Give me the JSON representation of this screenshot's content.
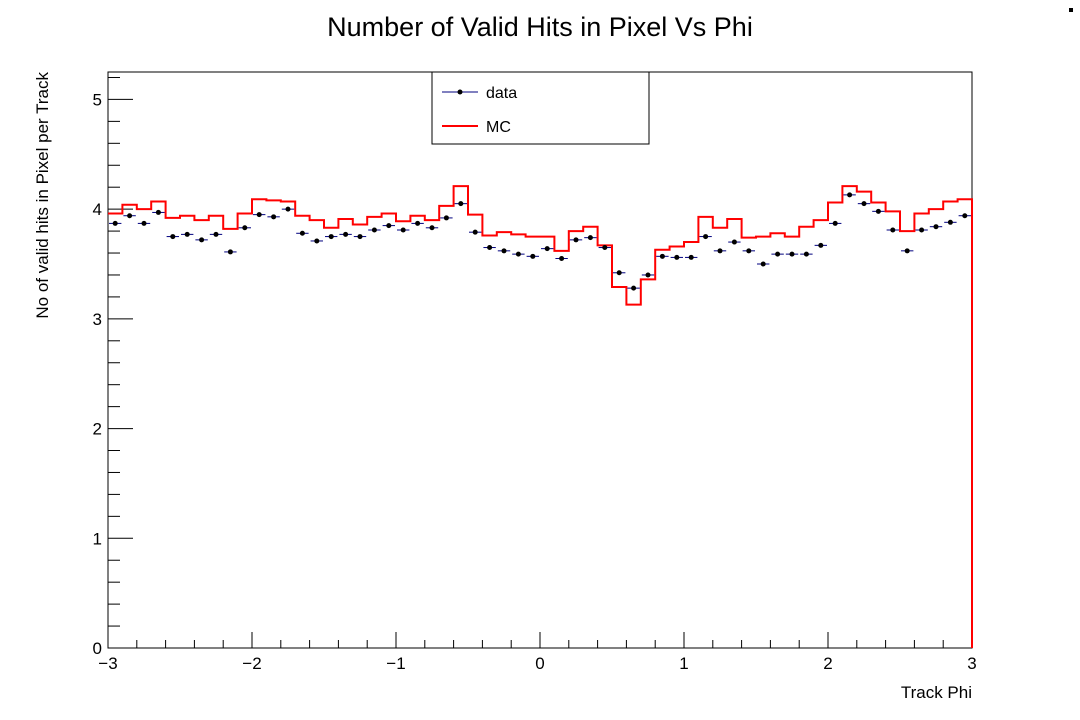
{
  "chart_data": {
    "type": "line",
    "title": "Number of Valid Hits in Pixel Vs Phi",
    "xlabel": "Track Phi",
    "ylabel": "No of valid hits in Pixel per Track",
    "xlim": [
      -3,
      3
    ],
    "ylim": [
      0,
      5.25
    ],
    "x_ticks": [
      -3,
      -2,
      -1,
      0,
      1,
      2,
      3
    ],
    "x_tick_labels": [
      "−3",
      "−2",
      "−1",
      "0",
      "1",
      "2",
      "3"
    ],
    "y_ticks": [
      0,
      1,
      2,
      3,
      4,
      5
    ],
    "y_tick_labels": [
      "0",
      "1",
      "2",
      "3",
      "4",
      "5"
    ],
    "grid": false,
    "legend_position": "top-center",
    "bins": 60,
    "series": [
      {
        "name": "data",
        "style": "markers-with-xerror",
        "color": "#000000",
        "line_color": "#00007f",
        "values": [
          3.87,
          3.94,
          3.87,
          3.97,
          3.75,
          3.77,
          3.72,
          3.77,
          3.61,
          3.83,
          3.95,
          3.93,
          4.0,
          3.78,
          3.71,
          3.75,
          3.77,
          3.75,
          3.81,
          3.85,
          3.81,
          3.87,
          3.83,
          3.92,
          4.05,
          3.79,
          3.65,
          3.62,
          3.59,
          3.57,
          3.64,
          3.55,
          3.72,
          3.74,
          3.65,
          3.42,
          3.28,
          3.4,
          3.57,
          3.56,
          3.56,
          3.75,
          3.62,
          3.7,
          3.62,
          3.5,
          3.59,
          3.59,
          3.59,
          3.67,
          3.87,
          4.13,
          4.05,
          3.98,
          3.81,
          3.62,
          3.81,
          3.84,
          3.88,
          3.94
        ]
      },
      {
        "name": "MC",
        "style": "step",
        "color": "#ff0000",
        "values": [
          3.96,
          4.04,
          4.0,
          4.07,
          3.92,
          3.94,
          3.9,
          3.94,
          3.82,
          3.96,
          4.09,
          4.08,
          4.07,
          3.94,
          3.9,
          3.83,
          3.91,
          3.86,
          3.93,
          3.96,
          3.89,
          3.94,
          3.9,
          4.03,
          4.21,
          3.95,
          3.76,
          3.79,
          3.77,
          3.75,
          3.75,
          3.62,
          3.8,
          3.84,
          3.67,
          3.29,
          3.13,
          3.36,
          3.63,
          3.66,
          3.7,
          3.93,
          3.83,
          3.91,
          3.74,
          3.75,
          3.78,
          3.75,
          3.84,
          3.9,
          4.06,
          4.21,
          4.16,
          4.06,
          3.98,
          3.8,
          3.96,
          4.0,
          4.07,
          4.09
        ]
      }
    ]
  },
  "legend": {
    "data_label": "data",
    "mc_label": "MC"
  }
}
